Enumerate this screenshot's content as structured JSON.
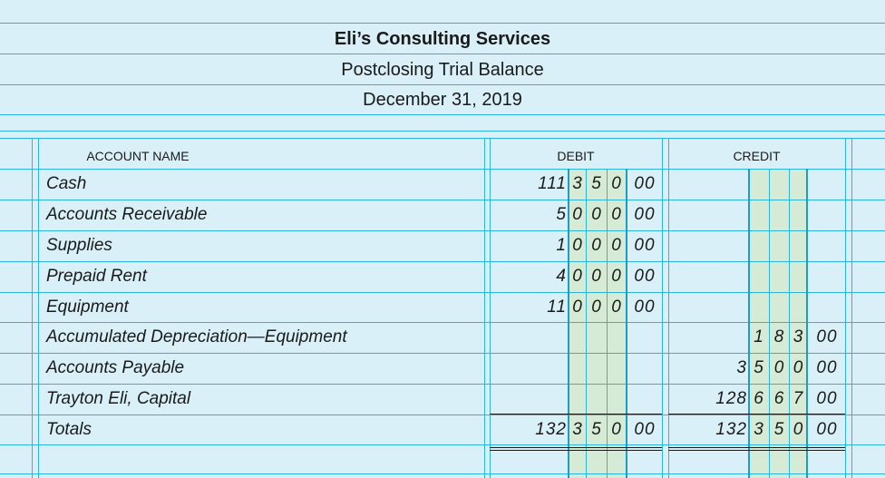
{
  "header": {
    "company": "Eli’s Consulting Services",
    "statement": "Postclosing Trial Balance",
    "date": "December 31, 2019"
  },
  "columns": {
    "account": "ACCOUNT NAME",
    "debit": "DEBIT",
    "credit": "CREDIT"
  },
  "rows": [
    {
      "account": "Cash",
      "debit": [
        "111",
        "3",
        "5",
        "0",
        "00"
      ],
      "credit": [
        "",
        "",
        "",
        "",
        ""
      ]
    },
    {
      "account": "Accounts Receivable",
      "debit": [
        "5",
        "0",
        "0",
        "0",
        "00"
      ],
      "credit": [
        "",
        "",
        "",
        "",
        ""
      ]
    },
    {
      "account": "Supplies",
      "debit": [
        "1",
        "0",
        "0",
        "0",
        "00"
      ],
      "credit": [
        "",
        "",
        "",
        "",
        ""
      ]
    },
    {
      "account": "Prepaid Rent",
      "debit": [
        "4",
        "0",
        "0",
        "0",
        "00"
      ],
      "credit": [
        "",
        "",
        "",
        "",
        ""
      ]
    },
    {
      "account": "Equipment",
      "debit": [
        "11",
        "0",
        "0",
        "0",
        "00"
      ],
      "credit": [
        "",
        "",
        "",
        "",
        ""
      ]
    },
    {
      "account": "Accumulated Depreciation—Equipment",
      "debit": [
        "",
        "",
        "",
        "",
        ""
      ],
      "credit": [
        "",
        "1",
        "8",
        "3",
        "00"
      ]
    },
    {
      "account": "Accounts Payable",
      "debit": [
        "",
        "",
        "",
        "",
        ""
      ],
      "credit": [
        "3",
        "5",
        "0",
        "0",
        "00"
      ]
    },
    {
      "account": "Trayton Eli, Capital",
      "debit": [
        "",
        "",
        "",
        "",
        ""
      ],
      "credit": [
        "128",
        "6",
        "6",
        "7",
        "00"
      ]
    },
    {
      "account": "Totals",
      "debit": [
        "132",
        "3",
        "5",
        "0",
        "00"
      ],
      "credit": [
        "132",
        "3",
        "5",
        "0",
        "00"
      ]
    }
  ],
  "colors": {
    "paper": "#d9f0f8",
    "rule": "#2eb3dc",
    "band": "#d6ebd6"
  }
}
